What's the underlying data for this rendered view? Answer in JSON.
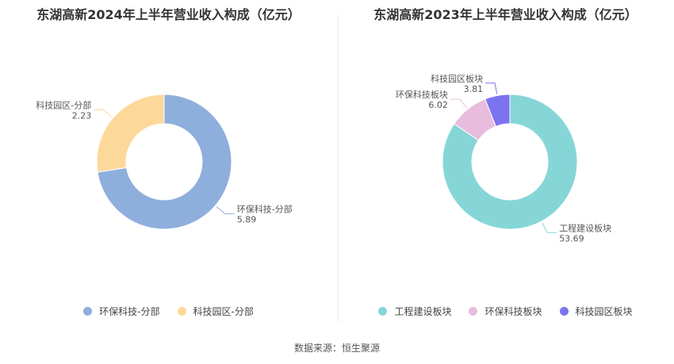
{
  "source": "数据来源：恒生聚源",
  "chart_data": [
    {
      "type": "pie",
      "title": "东湖高新2024年上半年营业收入构成（亿元）",
      "series": [
        {
          "name": "环保科技-分部",
          "value": 5.89,
          "value_label": "5.89",
          "color": "#8eaedc"
        },
        {
          "name": "科技园区-分部",
          "value": 2.23,
          "value_label": "2.23",
          "color": "#fdd89b"
        }
      ]
    },
    {
      "type": "pie",
      "title": "东湖高新2023年上半年营业收入构成（亿元）",
      "series": [
        {
          "name": "工程建设板块",
          "value": 53.69,
          "value_label": "53.69",
          "color": "#86d6d8"
        },
        {
          "name": "环保科技板块",
          "value": 6.02,
          "value_label": "6.02",
          "color": "#e8bcdc"
        },
        {
          "name": "科技园区板块",
          "value": 3.81,
          "value_label": "3.81",
          "color": "#7b73ef"
        }
      ]
    }
  ]
}
